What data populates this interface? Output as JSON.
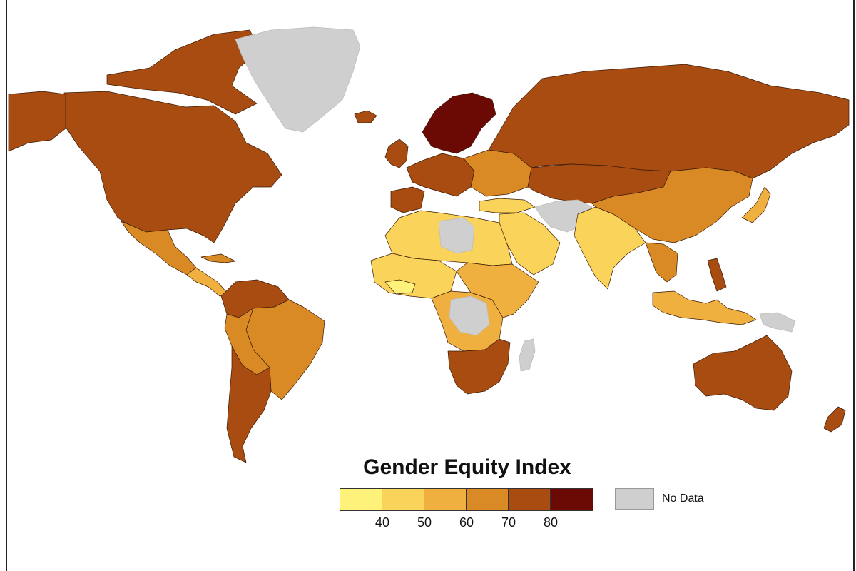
{
  "legend": {
    "title": "Gender Equity Index",
    "bins": [
      {
        "color": "#fff27a"
      },
      {
        "color": "#fad45a"
      },
      {
        "color": "#f0b040"
      },
      {
        "color": "#d98a24"
      },
      {
        "color": "#a84c12"
      },
      {
        "color": "#6b0a05"
      }
    ],
    "ticks": [
      "40",
      "50",
      "60",
      "70",
      "80"
    ],
    "no_data": {
      "label": "No Data",
      "color": "#cfcfcf"
    }
  },
  "regions": [
    {
      "name": "north-america",
      "color": "#a84c12"
    },
    {
      "name": "alaska",
      "color": "#a84c12"
    },
    {
      "name": "arctic-islands",
      "color": "#a84c12"
    },
    {
      "name": "greenland",
      "color": "#cfcfcf"
    },
    {
      "name": "iceland",
      "color": "#a84c12"
    },
    {
      "name": "mexico",
      "color": "#d98a24"
    },
    {
      "name": "central-america",
      "color": "#f0b040"
    },
    {
      "name": "cuba",
      "color": "#d98a24"
    },
    {
      "name": "colombia-venezuela",
      "color": "#a84c12"
    },
    {
      "name": "brazil",
      "color": "#d98a24"
    },
    {
      "name": "peru-bolivia",
      "color": "#d98a24"
    },
    {
      "name": "argentina-chile",
      "color": "#a84c12"
    },
    {
      "name": "uk-ireland",
      "color": "#a84c12"
    },
    {
      "name": "scandinavia",
      "color": "#6b0a05"
    },
    {
      "name": "western-europe",
      "color": "#a84c12"
    },
    {
      "name": "iberia",
      "color": "#a84c12"
    },
    {
      "name": "eastern-europe",
      "color": "#d98a24"
    },
    {
      "name": "russia",
      "color": "#a84c12"
    },
    {
      "name": "kazakhstan-mongolia",
      "color": "#a84c12"
    },
    {
      "name": "turkey",
      "color": "#fad45a"
    },
    {
      "name": "middle-east",
      "color": "#fad45a"
    },
    {
      "name": "iran-afghanistan",
      "color": "#cfcfcf"
    },
    {
      "name": "north-africa",
      "color": "#fad45a"
    },
    {
      "name": "libya",
      "color": "#cfcfcf"
    },
    {
      "name": "west-africa",
      "color": "#fad45a"
    },
    {
      "name": "west-africa-coast",
      "color": "#fff27a"
    },
    {
      "name": "central-africa",
      "color": "#f0b040"
    },
    {
      "name": "congo",
      "color": "#cfcfcf"
    },
    {
      "name": "east-africa",
      "color": "#f0b040"
    },
    {
      "name": "southern-africa",
      "color": "#a84c12"
    },
    {
      "name": "madagascar",
      "color": "#cfcfcf"
    },
    {
      "name": "india",
      "color": "#fad45a"
    },
    {
      "name": "china",
      "color": "#d98a24"
    },
    {
      "name": "southeast-asia",
      "color": "#d98a24"
    },
    {
      "name": "japan",
      "color": "#f0b040"
    },
    {
      "name": "indonesia",
      "color": "#f0b040"
    },
    {
      "name": "philippines",
      "color": "#a84c12"
    },
    {
      "name": "new-guinea",
      "color": "#cfcfcf"
    },
    {
      "name": "australia",
      "color": "#a84c12"
    },
    {
      "name": "new-zealand",
      "color": "#a84c12"
    }
  ]
}
